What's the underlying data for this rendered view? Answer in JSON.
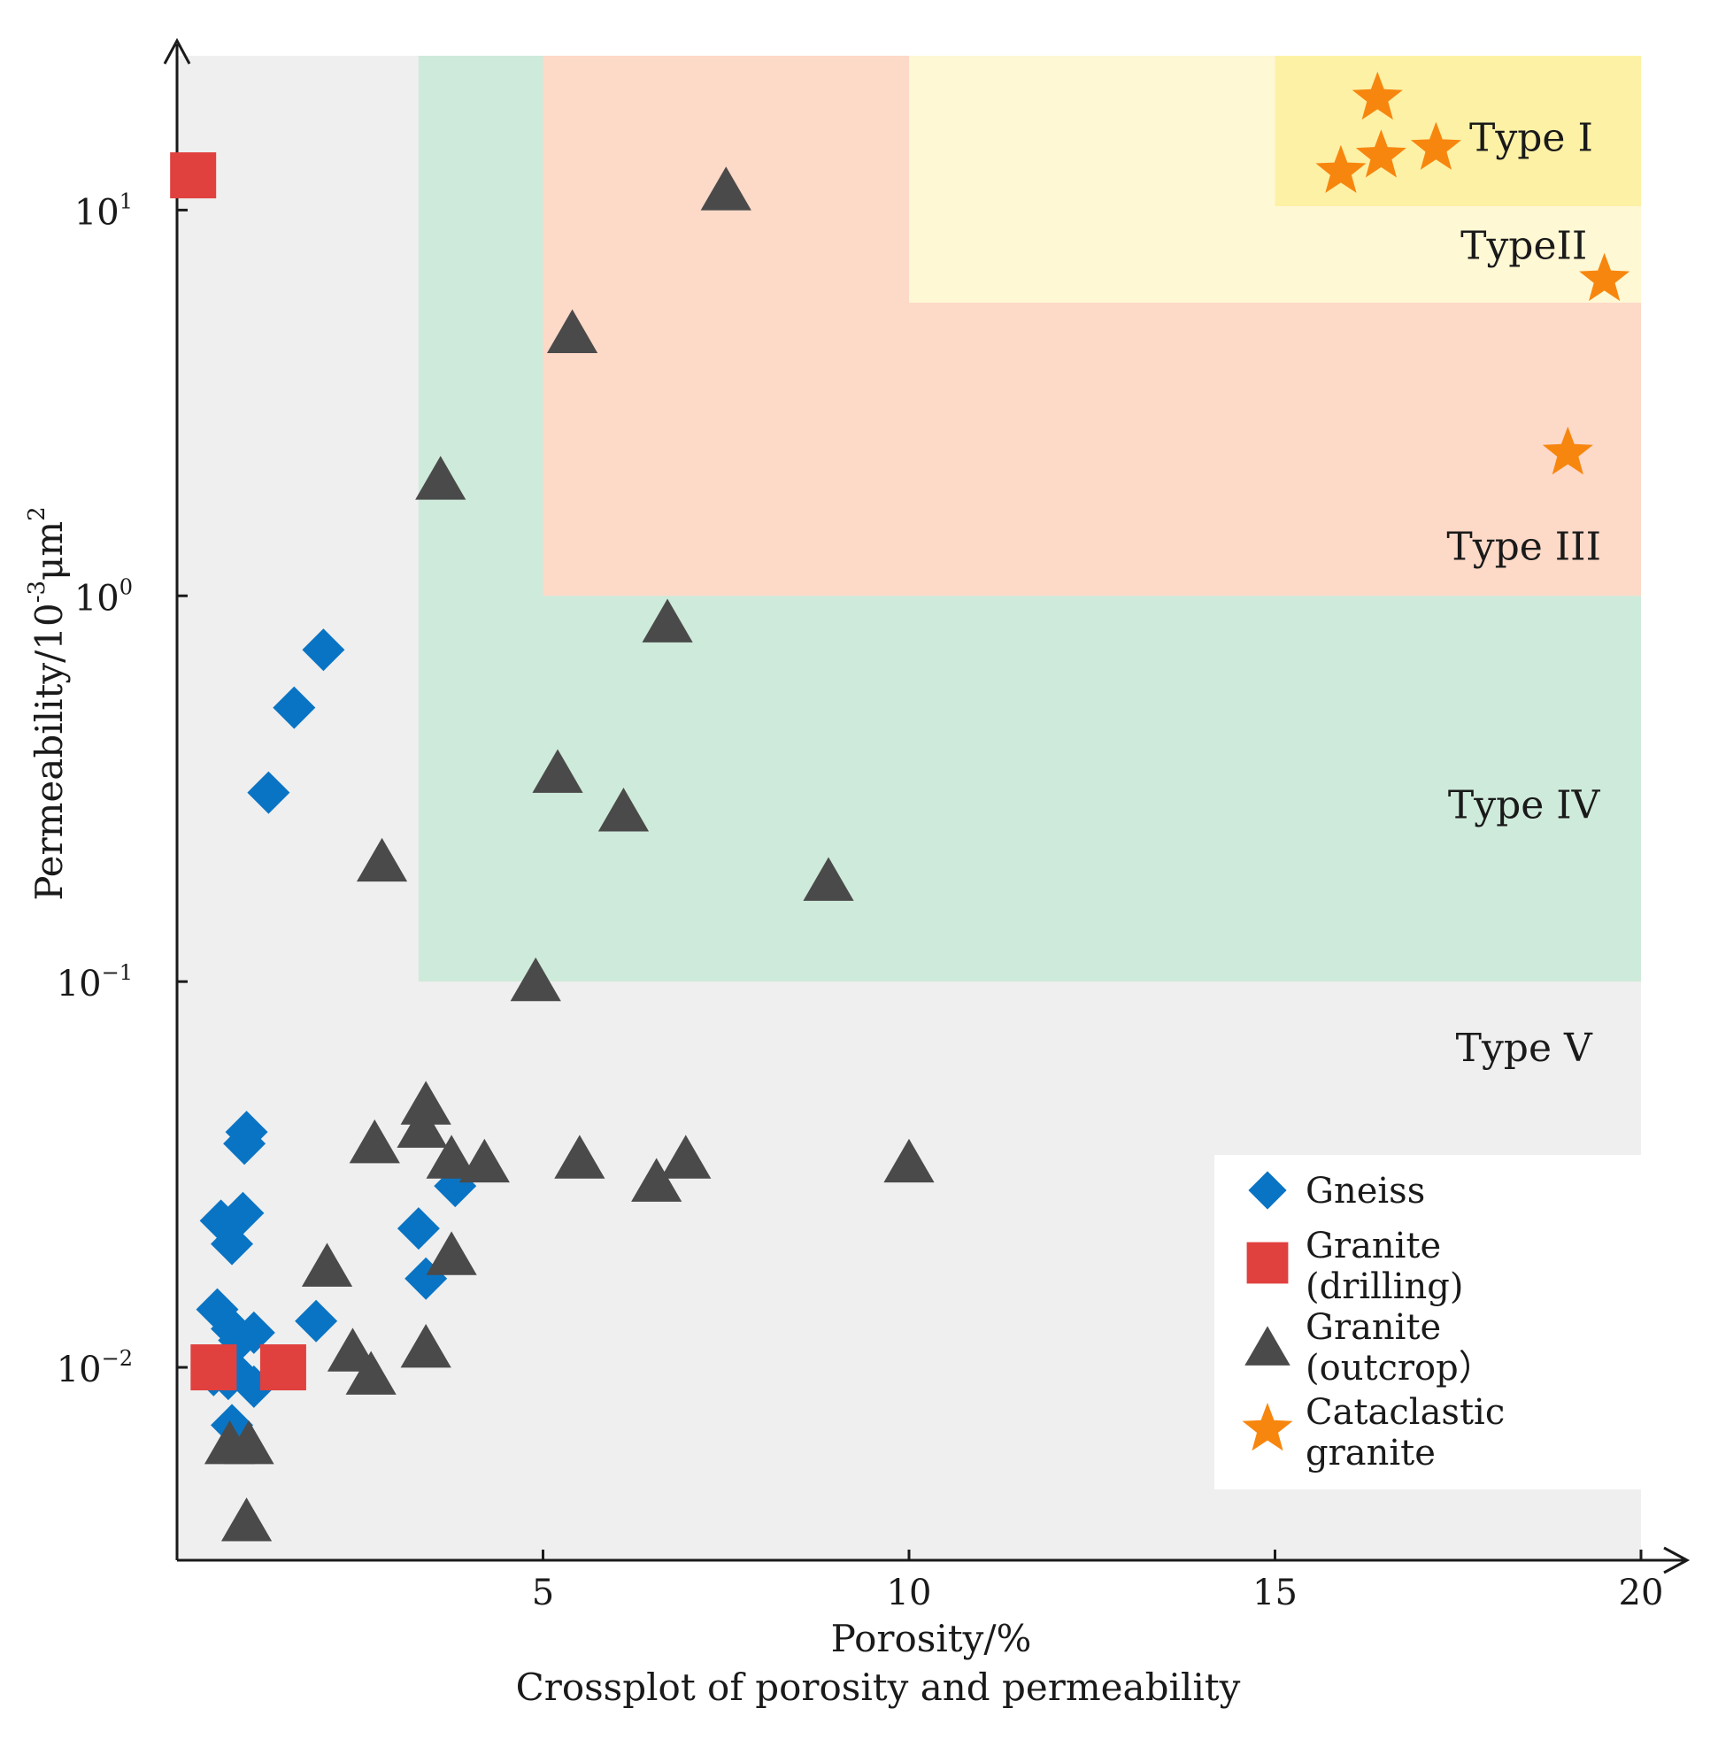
{
  "chart_data": {
    "type": "scatter",
    "title": "Crossplot of porosity and permeability",
    "xlabel": "Porosity/%",
    "ylabel_parts": [
      "Permeability/10",
      "-3",
      "μm",
      "2"
    ],
    "x_scale": "linear",
    "y_scale": "log",
    "xlim": [
      0,
      20
    ],
    "ylim_log10": [
      -2.5,
      1.4
    ],
    "x_ticks": [
      5,
      10,
      15,
      20
    ],
    "y_ticks": [
      {
        "base": "10",
        "exp": "1",
        "log": 1
      },
      {
        "base": "10",
        "exp": "0",
        "log": 0
      },
      {
        "base": "10",
        "exp": "−1",
        "log": -1
      },
      {
        "base": "10",
        "exp": "−2",
        "log": -2
      }
    ],
    "regions": [
      {
        "name": "Type V",
        "label": "Type V",
        "x": [
          0,
          20
        ],
        "y_log": [
          -2.5,
          1.4
        ],
        "color": "#efefef",
        "label_at": [
          18.4,
          -1.18
        ]
      },
      {
        "name": "Type IV",
        "label": "Type IV",
        "x": [
          3.3,
          20
        ],
        "y_log": [
          -1,
          1.4
        ],
        "color": "#ceeada",
        "label_at": [
          18.4,
          -0.55
        ]
      },
      {
        "name": "Type III",
        "label": "Type III",
        "x": [
          5,
          20
        ],
        "y_log": [
          0,
          1.4
        ],
        "color": "#fdd9c8",
        "label_at": [
          18.4,
          0.12
        ]
      },
      {
        "name": "Type II",
        "label": "TypeII",
        "x": [
          10,
          20
        ],
        "y_log": [
          0.76,
          1.4
        ],
        "color": "#fef8d4",
        "label_at": [
          18.4,
          0.9
        ]
      },
      {
        "name": "Type I",
        "label": "Type I",
        "x": [
          15,
          20
        ],
        "y_log": [
          1.01,
          1.4
        ],
        "color": "#fdf1a6",
        "label_at": [
          18.5,
          1.18
        ]
      }
    ],
    "series": [
      {
        "name": "Gneiss",
        "marker": "diamond",
        "color": "#0a74c4",
        "points": [
          [
            0.55,
            -1.85
          ],
          [
            0.85,
            -1.93
          ],
          [
            0.75,
            -1.9
          ],
          [
            1.05,
            -1.91
          ],
          [
            0.7,
            -2.03
          ],
          [
            0.8,
            -2.01
          ],
          [
            0.5,
            -2.02
          ],
          [
            1.05,
            -2.05
          ],
          [
            0.75,
            -2.15
          ],
          [
            1.9,
            -1.88
          ],
          [
            0.6,
            -1.62
          ],
          [
            0.9,
            -1.6
          ],
          [
            0.75,
            -1.68
          ],
          [
            0.95,
            -1.39
          ],
          [
            0.92,
            -1.42
          ],
          [
            3.3,
            -1.64
          ],
          [
            3.4,
            -1.77
          ],
          [
            3.8,
            -1.53
          ],
          [
            1.25,
            -0.51
          ],
          [
            1.6,
            -0.29
          ],
          [
            2.0,
            -0.14
          ]
        ]
      },
      {
        "name": "Granite (drilling)",
        "legend_lines": [
          "Granite",
          "(drilling)"
        ],
        "marker": "square",
        "color": "#e0403e",
        "points": [
          [
            0.22,
            1.09
          ],
          [
            0.5,
            -2.0
          ],
          [
            1.45,
            -2.0
          ]
        ]
      },
      {
        "name": "Granite (outcrop)",
        "legend_lines": [
          "Granite",
          "(outcrop）"
        ],
        "marker": "triangle",
        "color": "#4a4a4a",
        "points": [
          [
            7.5,
            1.05
          ],
          [
            5.4,
            0.68
          ],
          [
            3.6,
            0.3
          ],
          [
            6.7,
            -0.07
          ],
          [
            5.2,
            -0.46
          ],
          [
            6.1,
            -0.56
          ],
          [
            2.8,
            -0.69
          ],
          [
            8.9,
            -0.74
          ],
          [
            4.9,
            -1.0
          ],
          [
            3.4,
            -1.32
          ],
          [
            3.35,
            -1.38
          ],
          [
            2.7,
            -1.42
          ],
          [
            3.75,
            -1.46
          ],
          [
            4.2,
            -1.47
          ],
          [
            5.5,
            -1.46
          ],
          [
            6.55,
            -1.52
          ],
          [
            6.95,
            -1.46
          ],
          [
            10.0,
            -1.47
          ],
          [
            2.05,
            -1.74
          ],
          [
            3.75,
            -1.71
          ],
          [
            2.4,
            -1.96
          ],
          [
            3.4,
            -1.95
          ],
          [
            2.65,
            -2.02
          ],
          [
            0.72,
            -2.2
          ],
          [
            0.98,
            -2.2
          ],
          [
            0.95,
            -2.4
          ]
        ]
      },
      {
        "name": "Cataclastic granite",
        "legend_lines": [
          "Cataclastic",
          "granite"
        ],
        "marker": "star",
        "color": "#f7860f",
        "points": [
          [
            16.4,
            1.29
          ],
          [
            15.9,
            1.1
          ],
          [
            16.45,
            1.14
          ],
          [
            17.2,
            1.16
          ],
          [
            19.5,
            0.82
          ],
          [
            19.0,
            0.37
          ]
        ]
      }
    ],
    "legend_position": "bottom-right"
  }
}
